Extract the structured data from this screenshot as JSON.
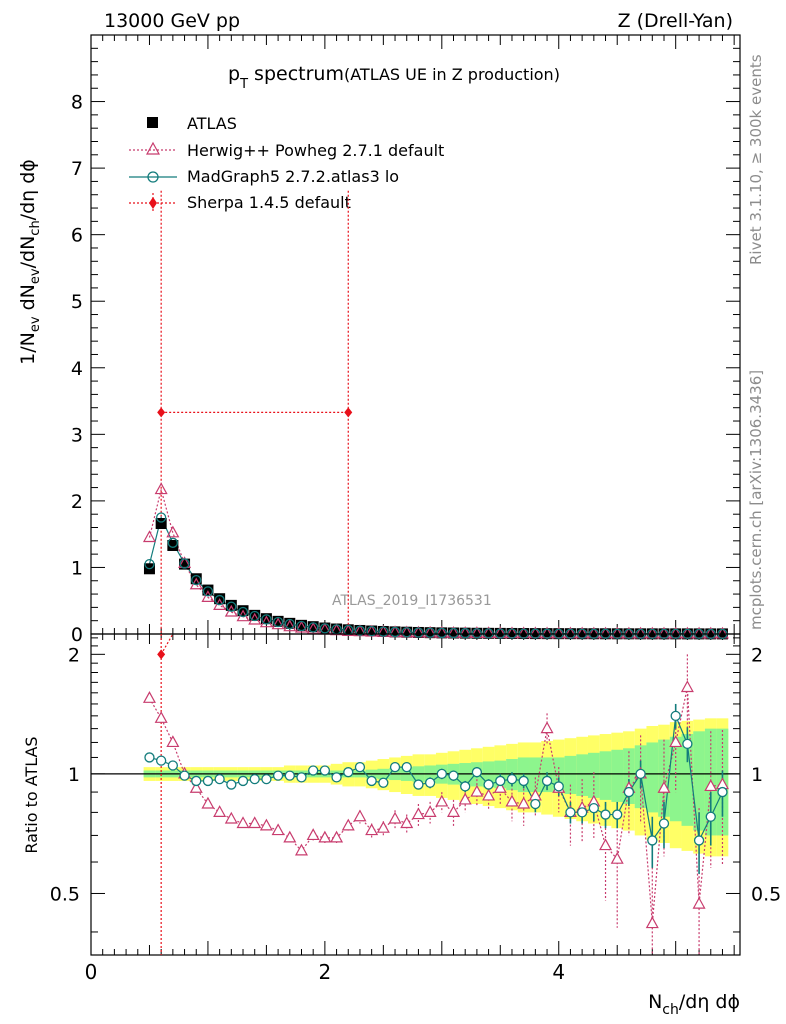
{
  "header": {
    "energy_label": "13000 GeV pp",
    "process_label": "Z (Drell-Yan)"
  },
  "side_labels": {
    "rivet": "Rivet 3.1.10, ≥ 300k events",
    "mcplots": "mcplots.cern.ch [arXiv:1306.3436]"
  },
  "watermark": "ATLAS_2019_I1736531",
  "chart_data": [
    {
      "panel": "main",
      "type": "scatter",
      "title_main": "p",
      "title_sub": "T",
      "title_rest": " spectrum",
      "title_note": "(ATLAS UE in Z production)",
      "xlabel_pre": "N",
      "xlabel_sub": "ch",
      "xlabel_post": "/dη dϕ",
      "ylabel": "1/N_ev dN_ev/dN_ch/dη dϕ",
      "xlim": [
        0,
        5.55
      ],
      "ylim": [
        0,
        9
      ],
      "yticks": [
        0,
        1,
        2,
        3,
        4,
        5,
        6,
        7,
        8
      ],
      "xticks": [
        0,
        2,
        4
      ],
      "legend": [
        "ATLAS",
        "Herwig++ Powheg 2.7.1 default",
        "MadGraph5 2.7.2.atlas3 lo",
        "Sherpa 1.4.5 default"
      ],
      "legend_position": "top-left",
      "x": [
        0.5,
        0.6,
        0.7,
        0.8,
        0.9,
        1.0,
        1.1,
        1.2,
        1.3,
        1.4,
        1.5,
        1.6,
        1.7,
        1.8,
        1.9,
        2.0,
        2.1,
        2.2,
        2.3,
        2.4,
        2.5,
        2.6,
        2.7,
        2.8,
        2.9,
        3.0,
        3.1,
        3.2,
        3.3,
        3.4,
        3.5,
        3.6,
        3.7,
        3.8,
        3.9,
        4.0,
        4.1,
        4.2,
        4.3,
        4.4,
        4.5,
        4.6,
        4.7,
        4.8,
        4.9,
        5.0,
        5.1,
        5.2,
        5.3,
        5.4
      ],
      "series": [
        {
          "name": "ATLAS",
          "color": "#000000",
          "values": [
            0.98,
            1.66,
            1.33,
            1.05,
            0.83,
            0.66,
            0.53,
            0.43,
            0.35,
            0.28,
            0.23,
            0.19,
            0.16,
            0.13,
            0.11,
            0.09,
            0.075,
            0.063,
            0.053,
            0.045,
            0.038,
            0.032,
            0.027,
            0.023,
            0.02,
            0.017,
            0.015,
            0.013,
            0.011,
            0.01,
            0.009,
            0.008,
            0.007,
            0.006,
            0.0055,
            0.005,
            0.0045,
            0.004,
            0.0036,
            0.0033,
            0.003,
            0.0027,
            0.0025,
            0.0023,
            0.0021,
            0.002,
            0.0018,
            0.0017,
            0.0016,
            0.0015
          ]
        },
        {
          "name": "Herwig++ Powheg 2.7.1 default",
          "color": "#c83c6e",
          "values": [
            1.45,
            2.17,
            1.52,
            1.06,
            0.74,
            0.55,
            0.43,
            0.33,
            0.26,
            0.21,
            0.17,
            0.14,
            0.11,
            0.09,
            0.07,
            0.06,
            0.05,
            0.04,
            0.035,
            0.03,
            0.026,
            0.022,
            0.019,
            0.016,
            0.014,
            0.012,
            0.011,
            0.01,
            0.009,
            0.008,
            0.007,
            0.006,
            0.005,
            0.005,
            0.004,
            0.004,
            0.0035,
            0.003,
            0.0028,
            0.0025,
            0.0022,
            0.002,
            0.0018,
            0.0016,
            0.0015,
            0.0014,
            0.0013,
            0.0012,
            0.0011,
            0.001
          ]
        },
        {
          "name": "MadGraph5 2.7.2.atlas3 lo",
          "color": "#137c7c",
          "values": [
            1.05,
            1.75,
            1.37,
            1.06,
            0.81,
            0.64,
            0.51,
            0.41,
            0.33,
            0.27,
            0.22,
            0.18,
            0.15,
            0.12,
            0.1,
            0.085,
            0.07,
            0.06,
            0.05,
            0.043,
            0.036,
            0.031,
            0.026,
            0.022,
            0.019,
            0.016,
            0.014,
            0.012,
            0.011,
            0.009,
            0.008,
            0.007,
            0.006,
            0.005,
            0.005,
            0.004,
            0.0036,
            0.0032,
            0.003,
            0.0027,
            0.0024,
            0.0022,
            0.002,
            0.0018,
            0.0017,
            0.0016,
            0.0015,
            0.0014,
            0.0013,
            0.0012
          ]
        },
        {
          "name": "Sherpa 1.4.5 default",
          "color": "#e8101a",
          "x": [
            0.6,
            2.2
          ],
          "values": [
            3.33,
            3.33
          ],
          "err_low": [
            3.33,
            3.33
          ],
          "err_high": [
            3.33,
            3.33
          ]
        }
      ]
    },
    {
      "panel": "ratio",
      "type": "line",
      "ylabel": "Ratio to ATLAS",
      "xlim": [
        0,
        5.55
      ],
      "ylim": [
        0.35,
        2.25
      ],
      "yticks": [
        0.5,
        1,
        2
      ],
      "ytick_labels": [
        "0.5",
        "1",
        "2"
      ],
      "x": [
        0.5,
        0.6,
        0.7,
        0.8,
        0.9,
        1.0,
        1.1,
        1.2,
        1.3,
        1.4,
        1.5,
        1.6,
        1.7,
        1.8,
        1.9,
        2.0,
        2.1,
        2.2,
        2.3,
        2.4,
        2.5,
        2.6,
        2.7,
        2.8,
        2.9,
        3.0,
        3.1,
        3.2,
        3.3,
        3.4,
        3.5,
        3.6,
        3.7,
        3.8,
        3.9,
        4.0,
        4.1,
        4.2,
        4.3,
        4.4,
        4.5,
        4.6,
        4.7,
        4.8,
        4.9,
        5.0,
        5.1,
        5.2,
        5.3,
        5.4
      ],
      "band_stat": [
        0.02,
        0.02,
        0.02,
        0.02,
        0.02,
        0.02,
        0.02,
        0.02,
        0.02,
        0.02,
        0.02,
        0.02,
        0.02,
        0.02,
        0.02,
        0.02,
        0.02,
        0.02,
        0.02,
        0.025,
        0.03,
        0.035,
        0.04,
        0.045,
        0.05,
        0.055,
        0.06,
        0.065,
        0.07,
        0.075,
        0.08,
        0.09,
        0.1,
        0.1,
        0.1,
        0.1,
        0.11,
        0.12,
        0.13,
        0.14,
        0.15,
        0.16,
        0.18,
        0.2,
        0.22,
        0.24,
        0.26,
        0.28,
        0.3,
        0.3
      ],
      "band_total": [
        0.04,
        0.04,
        0.04,
        0.04,
        0.04,
        0.04,
        0.04,
        0.04,
        0.04,
        0.04,
        0.04,
        0.04,
        0.05,
        0.05,
        0.05,
        0.05,
        0.06,
        0.07,
        0.07,
        0.08,
        0.09,
        0.1,
        0.11,
        0.12,
        0.12,
        0.13,
        0.14,
        0.15,
        0.16,
        0.17,
        0.18,
        0.19,
        0.2,
        0.2,
        0.21,
        0.22,
        0.23,
        0.24,
        0.25,
        0.26,
        0.27,
        0.28,
        0.3,
        0.32,
        0.33,
        0.35,
        0.36,
        0.37,
        0.38,
        0.38
      ],
      "series": [
        {
          "name": "Herwig++ Powheg 2.7.1 default",
          "color": "#c83c6e",
          "values": [
            1.55,
            1.38,
            1.2,
            1.0,
            0.92,
            0.84,
            0.8,
            0.77,
            0.75,
            0.75,
            0.74,
            0.72,
            0.69,
            0.64,
            0.7,
            0.69,
            0.69,
            0.74,
            0.78,
            0.72,
            0.73,
            0.77,
            0.75,
            0.79,
            0.8,
            0.85,
            0.8,
            0.86,
            0.9,
            0.88,
            0.92,
            0.85,
            0.84,
            0.88,
            1.3,
            0.92,
            0.8,
            0.82,
            0.85,
            0.66,
            0.61,
            0.92,
            1.0,
            0.42,
            0.92,
            1.2,
            1.65,
            0.47,
            0.93,
            0.94
          ],
          "err": [
            0.01,
            0.01,
            0.01,
            0.01,
            0.01,
            0.01,
            0.01,
            0.01,
            0.01,
            0.01,
            0.01,
            0.01,
            0.01,
            0.01,
            0.02,
            0.02,
            0.02,
            0.02,
            0.03,
            0.03,
            0.03,
            0.04,
            0.04,
            0.05,
            0.05,
            0.05,
            0.06,
            0.06,
            0.07,
            0.07,
            0.08,
            0.09,
            0.1,
            0.1,
            0.12,
            0.12,
            0.14,
            0.15,
            0.16,
            0.18,
            0.2,
            0.22,
            0.25,
            0.28,
            0.3,
            0.3,
            0.35,
            0.35,
            0.35,
            0.35
          ]
        },
        {
          "name": "MadGraph5 2.7.2.atlas3 lo",
          "color": "#137c7c",
          "values": [
            1.1,
            1.08,
            1.05,
            0.99,
            0.96,
            0.96,
            0.97,
            0.94,
            0.96,
            0.97,
            0.97,
            0.99,
            0.99,
            0.98,
            1.02,
            1.02,
            0.98,
            1.01,
            1.04,
            0.96,
            0.95,
            1.04,
            1.04,
            0.94,
            0.95,
            1.0,
            0.99,
            0.93,
            1.01,
            0.94,
            0.96,
            0.97,
            0.96,
            0.84,
            0.96,
            0.93,
            0.8,
            0.8,
            0.82,
            0.79,
            0.79,
            0.9,
            1.0,
            0.68,
            0.75,
            1.4,
            1.19,
            0.68,
            0.78,
            0.9
          ],
          "err": [
            0.01,
            0.01,
            0.01,
            0.01,
            0.01,
            0.01,
            0.01,
            0.01,
            0.01,
            0.01,
            0.01,
            0.01,
            0.01,
            0.01,
            0.01,
            0.01,
            0.01,
            0.01,
            0.02,
            0.02,
            0.02,
            0.02,
            0.02,
            0.02,
            0.03,
            0.03,
            0.03,
            0.03,
            0.03,
            0.03,
            0.04,
            0.04,
            0.04,
            0.04,
            0.05,
            0.05,
            0.05,
            0.05,
            0.06,
            0.06,
            0.06,
            0.07,
            0.08,
            0.1,
            0.1,
            0.1,
            0.12,
            0.12,
            0.12,
            0.12
          ]
        },
        {
          "name": "Sherpa 1.4.5 default",
          "color": "#e8101a",
          "x": [
            0.6
          ],
          "values": [
            2.0
          ]
        }
      ]
    }
  ]
}
